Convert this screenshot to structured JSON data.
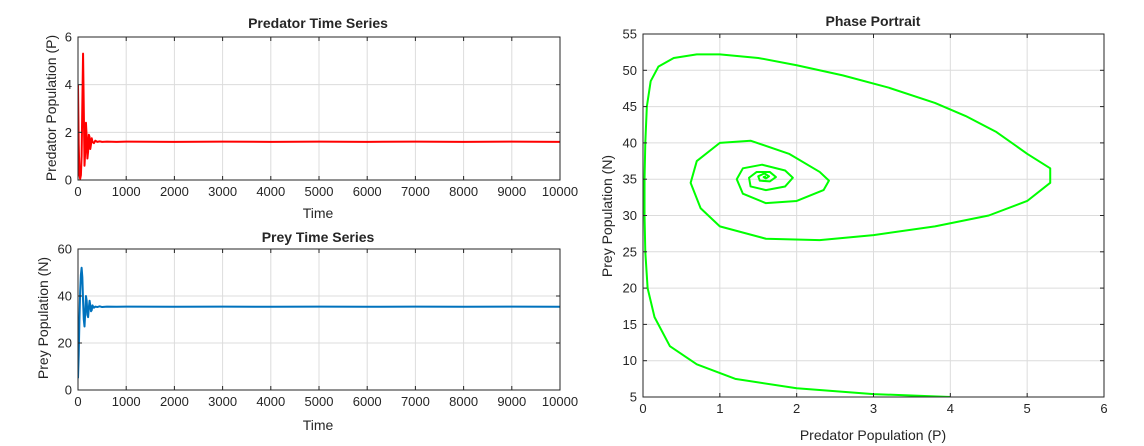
{
  "figure": {
    "background": "#ffffff",
    "axis_color": "#262626",
    "grid_color": "#dcdcdc"
  },
  "chart_data": [
    {
      "id": "predator",
      "type": "line",
      "title": "Predator Time Series",
      "xlabel": "Time",
      "ylabel": "Predator Population (P)",
      "xlim": [
        0,
        10000
      ],
      "ylim": [
        0,
        6
      ],
      "xticks": [
        0,
        1000,
        2000,
        3000,
        4000,
        5000,
        6000,
        7000,
        8000,
        9000,
        10000
      ],
      "yticks": [
        0,
        2,
        4,
        6
      ],
      "grid": true,
      "series": [
        {
          "color": "#ff0000",
          "x": [
            0,
            15,
            30,
            45,
            60,
            75,
            90,
            105,
            120,
            135,
            150,
            165,
            180,
            195,
            210,
            225,
            240,
            255,
            270,
            285,
            300,
            330,
            360,
            400,
            450,
            500,
            600,
            800,
            1000,
            2000,
            3000,
            4000,
            5000,
            6000,
            7000,
            8000,
            9000,
            10000
          ],
          "y": [
            4.0,
            1.5,
            0.2,
            0.05,
            0.2,
            1.0,
            3.2,
            5.3,
            3.0,
            0.6,
            1.2,
            2.4,
            1.8,
            0.9,
            1.2,
            1.9,
            1.8,
            1.3,
            1.5,
            1.75,
            1.6,
            1.55,
            1.65,
            1.6,
            1.62,
            1.6,
            1.61,
            1.6,
            1.61,
            1.6,
            1.61,
            1.6,
            1.61,
            1.6,
            1.61,
            1.6,
            1.61,
            1.6
          ]
        }
      ]
    },
    {
      "id": "prey",
      "type": "line",
      "title": "Prey Time Series",
      "xlabel": "Time",
      "ylabel": "Prey Population (N)",
      "xlim": [
        0,
        10000
      ],
      "ylim": [
        0,
        60
      ],
      "xticks": [
        0,
        1000,
        2000,
        3000,
        4000,
        5000,
        6000,
        7000,
        8000,
        9000,
        10000
      ],
      "yticks": [
        0,
        20,
        40,
        60
      ],
      "grid": true,
      "series": [
        {
          "color": "#0072bd",
          "x": [
            0,
            15,
            30,
            45,
            60,
            75,
            90,
            105,
            120,
            135,
            150,
            165,
            180,
            195,
            210,
            225,
            240,
            255,
            270,
            285,
            300,
            330,
            360,
            400,
            450,
            500,
            600,
            800,
            1000,
            2000,
            3000,
            4000,
            5000,
            6000,
            7000,
            8000,
            9000,
            10000
          ],
          "y": [
            5,
            15,
            30,
            42,
            49,
            52,
            48,
            38,
            30,
            27,
            33,
            40,
            38,
            32,
            31,
            35,
            38,
            36,
            33.5,
            34,
            36,
            35,
            35.5,
            35.3,
            35.6,
            35.3,
            35.5,
            35.4,
            35.5,
            35.4,
            35.5,
            35.4,
            35.5,
            35.4,
            35.5,
            35.4,
            35.5,
            35.4
          ]
        }
      ]
    },
    {
      "id": "phase",
      "type": "line",
      "title": "Phase Portrait",
      "xlabel": "Predator Population (P)",
      "ylabel": "Prey Population (N)",
      "xlim": [
        0,
        6
      ],
      "ylim": [
        5,
        55
      ],
      "xticks": [
        0,
        1,
        2,
        3,
        4,
        5,
        6
      ],
      "yticks": [
        5,
        10,
        15,
        20,
        25,
        30,
        35,
        40,
        45,
        50,
        55
      ],
      "grid": true,
      "series": [
        {
          "color": "#00ff00",
          "x": [
            4.0,
            3.0,
            2.0,
            1.2,
            0.7,
            0.35,
            0.15,
            0.06,
            0.03,
            0.02,
            0.02,
            0.03,
            0.05,
            0.1,
            0.2,
            0.4,
            0.7,
            1.0,
            1.5,
            2.0,
            2.6,
            3.2,
            3.8,
            4.2,
            4.6,
            5.0,
            5.3,
            5.3,
            5.0,
            4.5,
            3.8,
            3.0,
            2.3,
            1.6,
            1.0,
            0.75,
            0.62,
            0.7,
            1.0,
            1.4,
            1.9,
            2.3,
            2.42,
            2.35,
            2.0,
            1.6,
            1.3,
            1.22,
            1.3,
            1.55,
            1.85,
            1.95,
            1.85,
            1.6,
            1.4,
            1.38,
            1.48,
            1.65,
            1.73,
            1.65,
            1.52,
            1.5,
            1.58,
            1.64,
            1.6,
            1.57,
            1.6
          ],
          "y": [
            5.0,
            5.4,
            6.2,
            7.5,
            9.5,
            12.0,
            16.0,
            20.0,
            25.0,
            30.0,
            35.0,
            40.0,
            45.0,
            48.5,
            50.5,
            51.7,
            52.2,
            52.2,
            51.7,
            50.7,
            49.3,
            47.6,
            45.5,
            43.7,
            41.5,
            38.5,
            36.5,
            34.5,
            32.0,
            30.0,
            28.5,
            27.3,
            26.6,
            26.8,
            28.5,
            31.0,
            34.5,
            37.5,
            40.0,
            40.3,
            38.5,
            36.0,
            34.8,
            33.5,
            32.0,
            31.7,
            33.0,
            35.0,
            36.5,
            37.0,
            36.2,
            35.2,
            34.0,
            33.5,
            34.0,
            35.2,
            36.0,
            36.0,
            35.3,
            34.7,
            34.8,
            35.4,
            35.8,
            35.4,
            35.1,
            35.3,
            35.4
          ]
        }
      ]
    }
  ]
}
